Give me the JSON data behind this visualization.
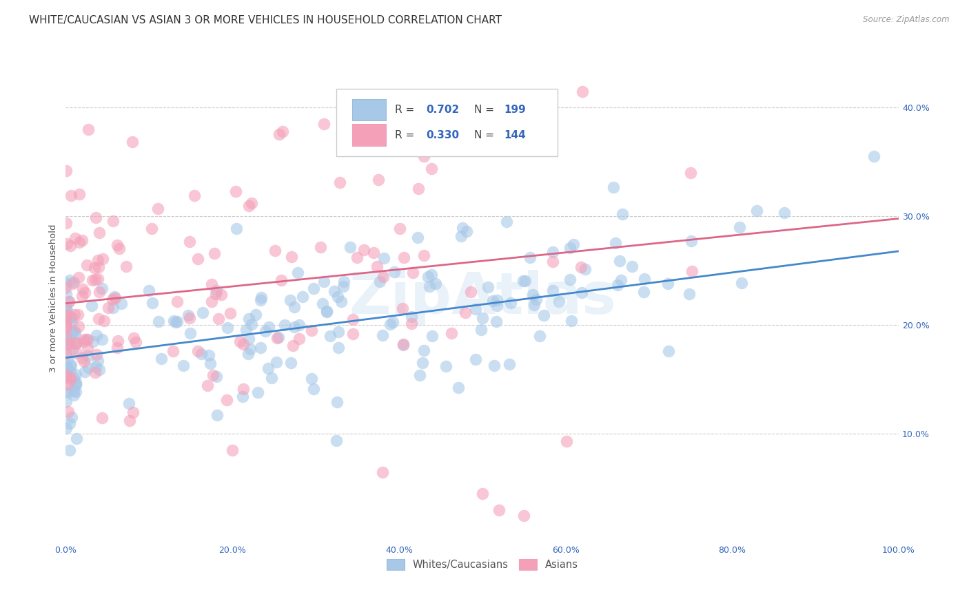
{
  "title": "WHITE/CAUCASIAN VS ASIAN 3 OR MORE VEHICLES IN HOUSEHOLD CORRELATION CHART",
  "source": "Source: ZipAtlas.com",
  "ylabel": "3 or more Vehicles in Household",
  "xlim": [
    0,
    1.0
  ],
  "ylim": [
    0,
    0.45
  ],
  "xticks": [
    0.0,
    0.2,
    0.4,
    0.6,
    0.8,
    1.0
  ],
  "xtick_labels": [
    "0.0%",
    "20.0%",
    "40.0%",
    "60.0%",
    "80.0%",
    "100.0%"
  ],
  "yticks": [
    0.1,
    0.2,
    0.3,
    0.4
  ],
  "ytick_labels": [
    "10.0%",
    "20.0%",
    "30.0%",
    "40.0%"
  ],
  "blue_R": 0.702,
  "blue_N": 199,
  "pink_R": 0.33,
  "pink_N": 144,
  "blue_scatter_color": "#a8c8e8",
  "pink_scatter_color": "#f4a0b8",
  "blue_line_color": "#4488cc",
  "pink_line_color": "#dd6688",
  "legend_label_blue": "Whites/Caucasians",
  "legend_label_pink": "Asians",
  "watermark": "ZipAtlas",
  "title_fontsize": 11,
  "axis_label_fontsize": 9.5,
  "tick_fontsize": 9,
  "blue_slope": 0.098,
  "blue_intercept": 0.17,
  "pink_slope": 0.078,
  "pink_intercept": 0.22,
  "seed": 7
}
